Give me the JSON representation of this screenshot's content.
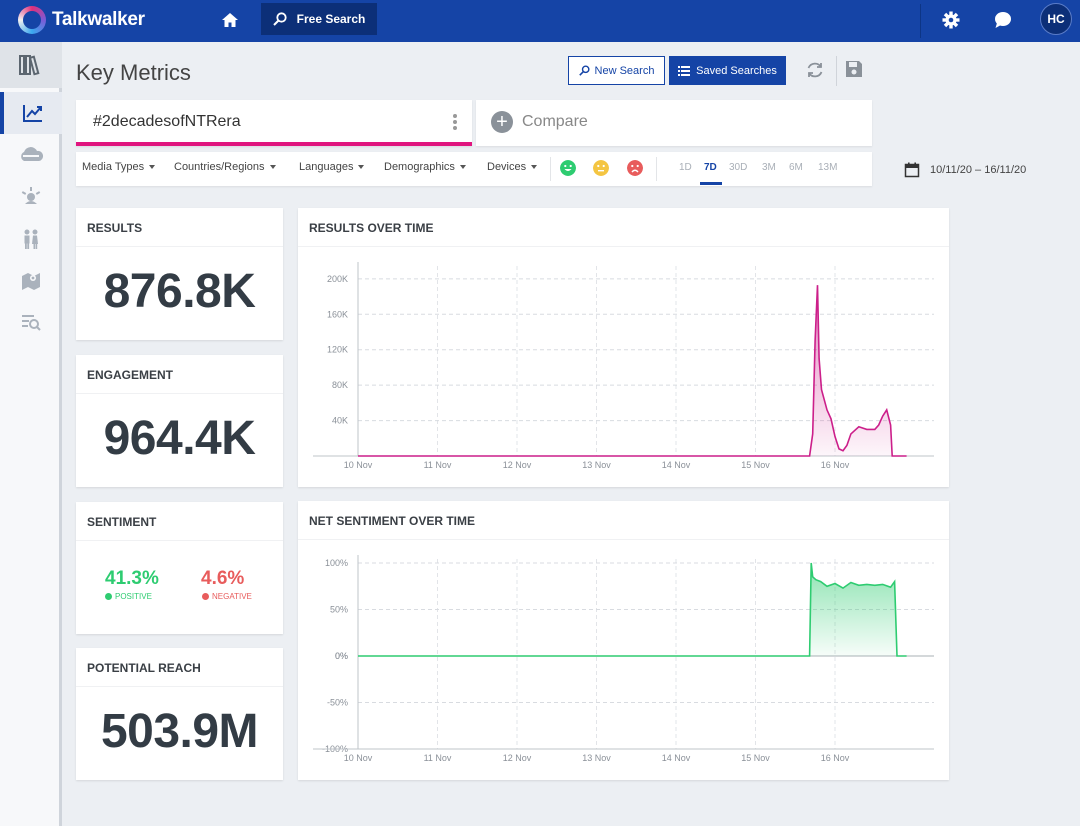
{
  "app": {
    "name": "Talkwalker",
    "nav_free_search": "Free Search",
    "user_initials": "HC"
  },
  "icons": {
    "logo": "talkwalker-logo-icon",
    "home": "home-icon",
    "search": "search-icon",
    "settings": "gear-icon",
    "chat": "chat-icon",
    "refresh": "refresh-icon",
    "save": "save-icon",
    "calendar": "calendar-icon",
    "compare": "plus-icon"
  },
  "sidebar": {
    "items": [
      {
        "name": "library",
        "icon": "library-icon"
      },
      {
        "name": "key-metrics",
        "icon": "chart-line-icon",
        "active": true
      },
      {
        "name": "influencers",
        "icon": "cloud-icon"
      },
      {
        "name": "themes",
        "icon": "ideas-icon"
      },
      {
        "name": "demographics",
        "icon": "people-icon"
      },
      {
        "name": "map",
        "icon": "map-icon"
      },
      {
        "name": "results",
        "icon": "list-search-icon"
      }
    ]
  },
  "header": {
    "title": "Key Metrics",
    "new_search": "New Search",
    "saved_searches": "Saved Searches"
  },
  "query": {
    "text": "#2decadesofNTRera",
    "compare": "Compare"
  },
  "filters": {
    "items": [
      "Media Types",
      "Countries/Regions",
      "Languages",
      "Demographics",
      "Devices"
    ],
    "sentiment_faces": [
      {
        "name": "positive",
        "color": "#2ecc71"
      },
      {
        "name": "neutral",
        "color": "#f4c542"
      },
      {
        "name": "negative",
        "color": "#e85c5c"
      }
    ],
    "ranges": [
      "1D",
      "7D",
      "30D",
      "3M",
      "6M",
      "13M"
    ],
    "active_range": "7D",
    "date_range": "10/11/20 – 16/11/20"
  },
  "metrics": {
    "results": {
      "label": "RESULTS",
      "value": "876.8K"
    },
    "engagement": {
      "label": "ENGAGEMENT",
      "value": "964.4K"
    },
    "sentiment": {
      "label": "SENTIMENT",
      "positive_pct": "41.3%",
      "positive_label": "POSITIVE",
      "positive_color": "#2ecc71",
      "negative_pct": "4.6%",
      "negative_label": "NEGATIVE",
      "negative_color": "#e85c5c"
    },
    "reach": {
      "label": "POTENTIAL REACH",
      "value": "503.9M"
    }
  },
  "chart_data": [
    {
      "type": "area",
      "title": "RESULTS OVER TIME",
      "x_ticks": [
        "10 Nov",
        "11 Nov",
        "12 Nov",
        "13 Nov",
        "14 Nov",
        "15 Nov",
        "16 Nov"
      ],
      "y_ticks": [
        "40K",
        "80K",
        "120K",
        "160K",
        "200K"
      ],
      "y_tick_values": [
        40000,
        80000,
        120000,
        160000,
        200000
      ],
      "ylim": [
        0,
        210000
      ],
      "xlim": [
        0,
        7
      ],
      "color": "#cc1f8a",
      "grid": true,
      "series": [
        {
          "x": [
            0,
            1,
            2,
            3,
            4,
            5,
            5.68,
            5.72,
            5.75,
            5.78,
            5.8,
            5.83,
            5.86,
            5.9,
            5.95,
            6.0,
            6.05,
            6.1,
            6.15,
            6.2,
            6.3,
            6.4,
            6.5,
            6.55,
            6.6,
            6.65,
            6.7,
            6.72,
            6.78,
            6.9
          ],
          "y": [
            0,
            0,
            0,
            0,
            0,
            0,
            0,
            25000,
            130000,
            193000,
            110000,
            75000,
            65000,
            52000,
            42000,
            22000,
            8000,
            6000,
            12000,
            25000,
            33000,
            30000,
            30000,
            35000,
            45000,
            52000,
            35000,
            0,
            0,
            0
          ]
        }
      ]
    },
    {
      "type": "area",
      "title": "NET SENTIMENT OVER TIME",
      "x_ticks": [
        "10 Nov",
        "11 Nov",
        "12 Nov",
        "13 Nov",
        "14 Nov",
        "15 Nov",
        "16 Nov"
      ],
      "y_ticks": [
        "-100%",
        "-50%",
        "0%",
        "50%",
        "100%"
      ],
      "y_tick_values": [
        -100,
        -50,
        0,
        50,
        100
      ],
      "ylim": [
        -100,
        100
      ],
      "xlim": [
        0,
        7
      ],
      "color": "#2ecc71",
      "grid": true,
      "series": [
        {
          "x": [
            0,
            1,
            2,
            3,
            4,
            5,
            5.68,
            5.7,
            5.72,
            5.76,
            5.82,
            5.9,
            6.0,
            6.1,
            6.2,
            6.3,
            6.4,
            6.5,
            6.6,
            6.7,
            6.75,
            6.78,
            6.9
          ],
          "y": [
            0,
            0,
            0,
            0,
            0,
            0,
            0,
            100,
            85,
            82,
            80,
            75,
            78,
            73,
            79,
            76,
            77,
            76,
            77,
            74,
            80,
            0,
            0
          ]
        }
      ]
    }
  ]
}
